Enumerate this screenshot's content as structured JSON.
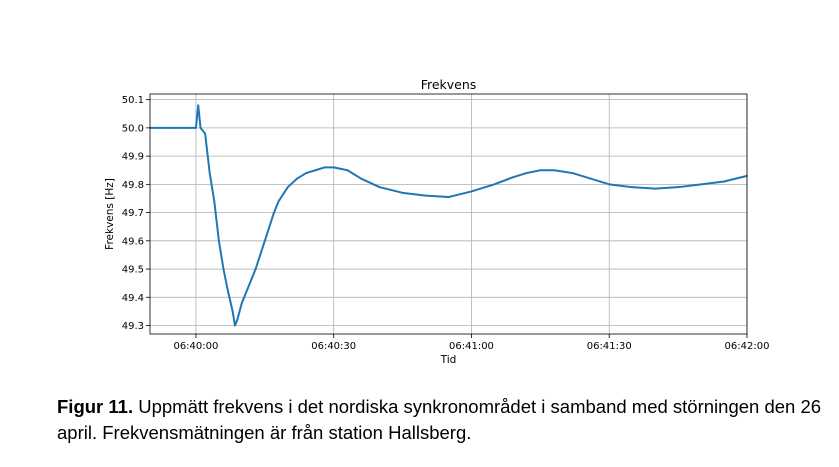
{
  "chart_data": {
    "type": "line",
    "title": "Frekvens",
    "xlabel": "Tid",
    "ylabel": "Frekvens [Hz]",
    "x_unit": "time (mm:ss after 06:00)",
    "xlim": [
      "06:39:50",
      "06:42:00"
    ],
    "ylim": [
      49.27,
      50.12
    ],
    "x_ticks": [
      "06:40:00",
      "06:40:30",
      "06:41:00",
      "06:41:30",
      "06:42:00"
    ],
    "y_ticks": [
      "50.1",
      "50.0",
      "49.9",
      "49.8",
      "49.7",
      "49.6",
      "49.5",
      "49.4",
      "49.3"
    ],
    "grid": "major",
    "line_color": "#1f77b4",
    "series": [
      {
        "x": [
          "06:39:50",
          "06:39:55",
          "06:39:59",
          "06:40:00",
          "06:40:00.5",
          "06:40:01",
          "06:40:02",
          "06:40:03",
          "06:40:04",
          "06:40:05",
          "06:40:06",
          "06:40:07",
          "06:40:08",
          "06:40:08.5",
          "06:40:09",
          "06:40:10",
          "06:40:11",
          "06:40:12",
          "06:40:13",
          "06:40:14",
          "06:40:15",
          "06:40:16",
          "06:40:17",
          "06:40:18",
          "06:40:20",
          "06:40:22",
          "06:40:24",
          "06:40:26",
          "06:40:28",
          "06:40:30",
          "06:40:33",
          "06:40:36",
          "06:40:40",
          "06:40:45",
          "06:40:50",
          "06:40:55",
          "06:41:00",
          "06:41:05",
          "06:41:09",
          "06:41:12",
          "06:41:15",
          "06:41:18",
          "06:41:22",
          "06:41:26",
          "06:41:30",
          "06:41:35",
          "06:41:40",
          "06:41:45",
          "06:41:50",
          "06:41:55",
          "06:42:00"
        ],
        "y": [
          50.0,
          50.0,
          50.0,
          50.0,
          50.08,
          50.0,
          49.98,
          49.84,
          49.74,
          49.6,
          49.5,
          49.42,
          49.35,
          49.3,
          49.32,
          49.38,
          49.42,
          49.46,
          49.5,
          49.55,
          49.6,
          49.65,
          49.7,
          49.74,
          49.79,
          49.82,
          49.84,
          49.85,
          49.86,
          49.86,
          49.85,
          49.82,
          49.79,
          49.77,
          49.76,
          49.755,
          49.775,
          49.8,
          49.825,
          49.84,
          49.85,
          49.85,
          49.84,
          49.82,
          49.8,
          49.79,
          49.785,
          49.79,
          49.8,
          49.81,
          49.83
        ]
      }
    ]
  },
  "caption": {
    "label": "Figur 11.",
    "text": " Uppmätt frekvens i det nordiska synkronområdet i samband med störningen den 26 april. Frekvensmätningen är från station Hallsberg."
  }
}
